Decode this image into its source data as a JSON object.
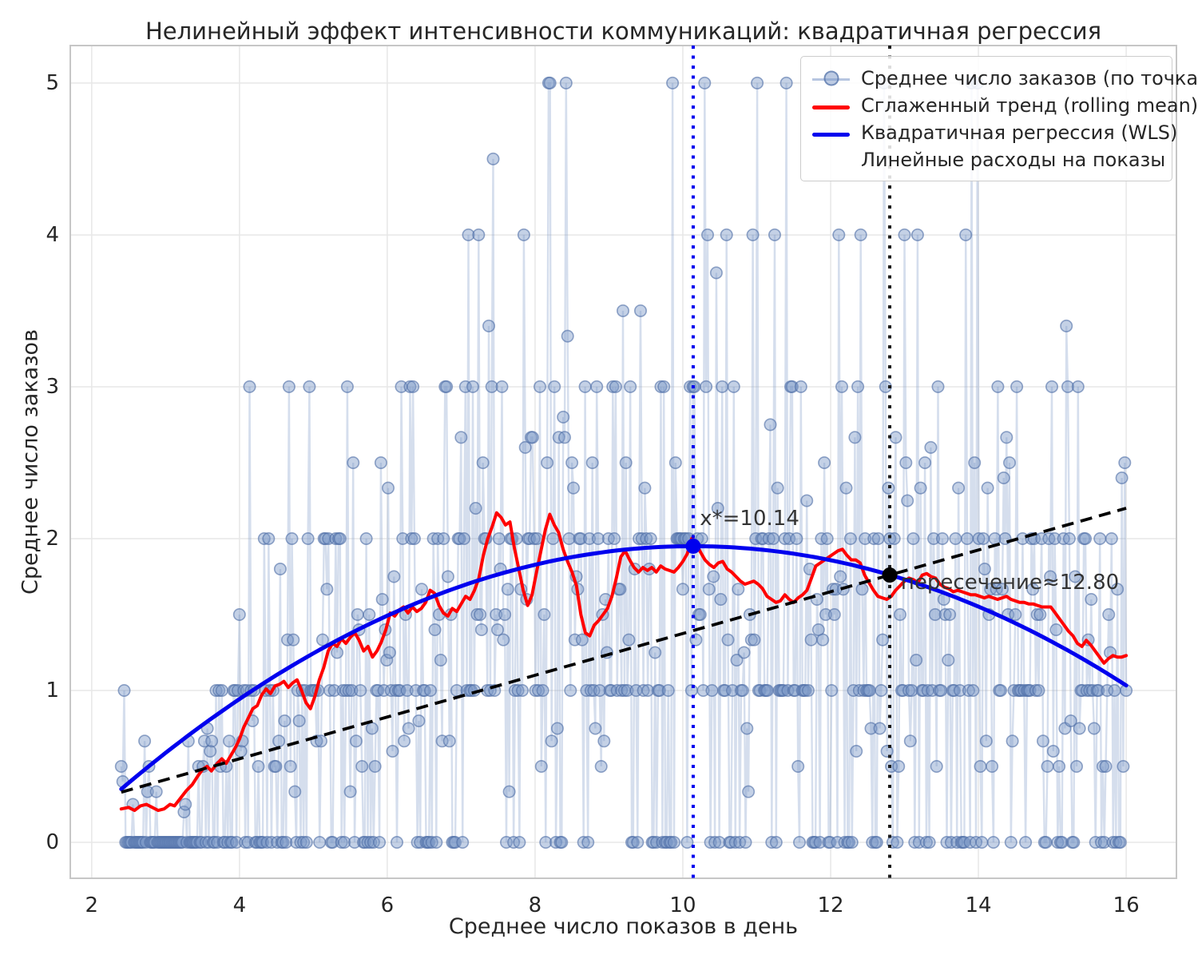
{
  "title": "Нелинейный эффект интенсивности коммуникаций: квадратичная регрессия",
  "xlabel": "Среднее число показов в день",
  "ylabel": "Среднее число заказов",
  "legend": {
    "items": [
      {
        "label": "Среднее число заказов (по точкам)",
        "type": "scatter-line",
        "color": "#aec7e8"
      },
      {
        "label": "Сглаженный тренд (rolling mean)",
        "type": "line",
        "color": "#ff0000"
      },
      {
        "label": "Квадратичная регрессия (WLS)",
        "type": "line",
        "color": "#0000ee"
      },
      {
        "label": "Линейные расходы на показы",
        "type": "dashed-line",
        "color": "#000000"
      }
    ],
    "position": "upper right"
  },
  "annotations": {
    "vertex_label": "x*=10.14",
    "vertex_anchor": [
      10.23,
      2.13
    ],
    "intersection_label": "пересечение≈12.80",
    "intersection_anchor": [
      12.95,
      1.71
    ]
  },
  "colors": {
    "scatter_fill": "rgba(124,152,200,0.45)",
    "scatter_edge": "rgba(77,109,165,0.6)",
    "scatter_connector": "rgba(124,152,200,0.32)",
    "trend": "#ff0000",
    "regression": "#0000ee",
    "costs": "#000000",
    "vline_optimum": "#0000ee",
    "vline_intersection": "#1a1a1a",
    "grid": "#e7e7e7",
    "spine": "#c6c6c6",
    "text": "#262626"
  },
  "chart_data": {
    "type": "scatter",
    "title": "Нелинейный эффект интенсивности коммуникаций: квадратичная регрессия",
    "xlabel": "Среднее число показов в день",
    "ylabel": "Среднее число заказов",
    "xlim": [
      1.71,
      16.68
    ],
    "ylim": [
      -0.237,
      5.247
    ],
    "xticks": [
      2,
      4,
      6,
      8,
      10,
      12,
      14,
      16
    ],
    "yticks": [
      0,
      1,
      2,
      3,
      4,
      5
    ],
    "grid": true,
    "legend_position": "upper right",
    "vlines": [
      {
        "x": 10.14,
        "style": "dotted",
        "color": "#0000ee",
        "name": "optimum"
      },
      {
        "x": 12.8,
        "style": "dotted",
        "color": "#1a1a1a",
        "name": "intersection"
      }
    ],
    "point_markers": [
      {
        "x": 10.14,
        "y": 1.95,
        "color": "#0000ee",
        "name": "vertex-point"
      },
      {
        "x": 12.8,
        "y": 1.76,
        "color": "#000000",
        "name": "intersection-point"
      }
    ],
    "series": [
      {
        "name": "Среднее число заказов (по точкам)",
        "type": "scatter-line",
        "generated": true,
        "generator": {
          "n": 690,
          "x_min": 2.4,
          "x_max": 16.0,
          "seed": 20240917,
          "zero_inflation": 0.13,
          "lambda_jitter": 0.3,
          "day_weights": [
            1,
            1,
            1,
            1,
            2,
            2,
            3,
            3,
            4,
            5
          ],
          "y_min": 0,
          "y_max": 5
        }
      },
      {
        "name": "Сглаженный тренд (rolling mean)",
        "type": "line",
        "points": [
          [
            2.4,
            0.22
          ],
          [
            2.5,
            0.23
          ],
          [
            2.58,
            0.21
          ],
          [
            2.66,
            0.24
          ],
          [
            2.74,
            0.25
          ],
          [
            2.82,
            0.23
          ],
          [
            2.9,
            0.21
          ],
          [
            2.98,
            0.22
          ],
          [
            3.06,
            0.25
          ],
          [
            3.12,
            0.24
          ],
          [
            3.2,
            0.29
          ],
          [
            3.28,
            0.34
          ],
          [
            3.36,
            0.38
          ],
          [
            3.44,
            0.44
          ],
          [
            3.5,
            0.48
          ],
          [
            3.56,
            0.5
          ],
          [
            3.62,
            0.47
          ],
          [
            3.7,
            0.52
          ],
          [
            3.76,
            0.55
          ],
          [
            3.82,
            0.52
          ],
          [
            3.88,
            0.57
          ],
          [
            3.94,
            0.62
          ],
          [
            4.0,
            0.68
          ],
          [
            4.06,
            0.76
          ],
          [
            4.12,
            0.82
          ],
          [
            4.18,
            0.88
          ],
          [
            4.24,
            0.9
          ],
          [
            4.3,
            0.97
          ],
          [
            4.36,
            1.01
          ],
          [
            4.42,
            0.98
          ],
          [
            4.48,
            1.03
          ],
          [
            4.54,
            1.04
          ],
          [
            4.6,
            1.06
          ],
          [
            4.66,
            1.02
          ],
          [
            4.72,
            1.05
          ],
          [
            4.78,
            1.07
          ],
          [
            4.84,
            1.0
          ],
          [
            4.9,
            0.92
          ],
          [
            4.96,
            0.88
          ],
          [
            5.02,
            0.96
          ],
          [
            5.08,
            1.07
          ],
          [
            5.14,
            1.15
          ],
          [
            5.2,
            1.26
          ],
          [
            5.26,
            1.31
          ],
          [
            5.32,
            1.29
          ],
          [
            5.38,
            1.34
          ],
          [
            5.44,
            1.31
          ],
          [
            5.5,
            1.35
          ],
          [
            5.56,
            1.38
          ],
          [
            5.62,
            1.33
          ],
          [
            5.68,
            1.26
          ],
          [
            5.74,
            1.29
          ],
          [
            5.8,
            1.22
          ],
          [
            5.86,
            1.26
          ],
          [
            5.92,
            1.32
          ],
          [
            5.98,
            1.4
          ],
          [
            6.04,
            1.51
          ],
          [
            6.1,
            1.49
          ],
          [
            6.16,
            1.53
          ],
          [
            6.22,
            1.55
          ],
          [
            6.28,
            1.51
          ],
          [
            6.34,
            1.55
          ],
          [
            6.4,
            1.52
          ],
          [
            6.46,
            1.54
          ],
          [
            6.52,
            1.58
          ],
          [
            6.58,
            1.66
          ],
          [
            6.64,
            1.64
          ],
          [
            6.7,
            1.56
          ],
          [
            6.76,
            1.51
          ],
          [
            6.82,
            1.49
          ],
          [
            6.88,
            1.54
          ],
          [
            6.94,
            1.52
          ],
          [
            7.0,
            1.57
          ],
          [
            7.06,
            1.62
          ],
          [
            7.12,
            1.6
          ],
          [
            7.18,
            1.66
          ],
          [
            7.24,
            1.74
          ],
          [
            7.3,
            1.89
          ],
          [
            7.36,
            2.0
          ],
          [
            7.42,
            2.08
          ],
          [
            7.48,
            2.17
          ],
          [
            7.54,
            2.14
          ],
          [
            7.6,
            2.09
          ],
          [
            7.66,
            2.11
          ],
          [
            7.72,
            1.94
          ],
          [
            7.78,
            1.8
          ],
          [
            7.84,
            1.66
          ],
          [
            7.9,
            1.56
          ],
          [
            7.96,
            1.63
          ],
          [
            8.02,
            1.78
          ],
          [
            8.08,
            1.92
          ],
          [
            8.14,
            2.06
          ],
          [
            8.2,
            2.16
          ],
          [
            8.26,
            2.09
          ],
          [
            8.32,
            2.04
          ],
          [
            8.38,
            1.93
          ],
          [
            8.44,
            1.85
          ],
          [
            8.5,
            1.78
          ],
          [
            8.56,
            1.69
          ],
          [
            8.62,
            1.5
          ],
          [
            8.68,
            1.38
          ],
          [
            8.74,
            1.36
          ],
          [
            8.8,
            1.43
          ],
          [
            8.86,
            1.46
          ],
          [
            8.92,
            1.5
          ],
          [
            8.98,
            1.54
          ],
          [
            9.04,
            1.62
          ],
          [
            9.1,
            1.74
          ],
          [
            9.16,
            1.88
          ],
          [
            9.22,
            1.92
          ],
          [
            9.28,
            1.86
          ],
          [
            9.34,
            1.81
          ],
          [
            9.4,
            1.78
          ],
          [
            9.46,
            1.81
          ],
          [
            9.52,
            1.79
          ],
          [
            9.58,
            1.81
          ],
          [
            9.64,
            1.78
          ],
          [
            9.7,
            1.82
          ],
          [
            9.76,
            1.8
          ],
          [
            9.82,
            1.79
          ],
          [
            9.88,
            1.78
          ],
          [
            9.94,
            1.81
          ],
          [
            10.0,
            1.85
          ],
          [
            10.06,
            1.9
          ],
          [
            10.12,
            2.0
          ],
          [
            10.18,
            1.97
          ],
          [
            10.24,
            1.91
          ],
          [
            10.3,
            1.86
          ],
          [
            10.36,
            1.83
          ],
          [
            10.42,
            1.81
          ],
          [
            10.48,
            1.84
          ],
          [
            10.54,
            1.85
          ],
          [
            10.6,
            1.8
          ],
          [
            10.66,
            1.78
          ],
          [
            10.72,
            1.75
          ],
          [
            10.78,
            1.72
          ],
          [
            10.84,
            1.7
          ],
          [
            10.9,
            1.71
          ],
          [
            10.96,
            1.72
          ],
          [
            11.02,
            1.7
          ],
          [
            11.08,
            1.67
          ],
          [
            11.14,
            1.62
          ],
          [
            11.2,
            1.6
          ],
          [
            11.26,
            1.58
          ],
          [
            11.32,
            1.59
          ],
          [
            11.38,
            1.63
          ],
          [
            11.44,
            1.6
          ],
          [
            11.5,
            1.58
          ],
          [
            11.56,
            1.61
          ],
          [
            11.62,
            1.63
          ],
          [
            11.68,
            1.66
          ],
          [
            11.74,
            1.74
          ],
          [
            11.8,
            1.82
          ],
          [
            11.86,
            1.84
          ],
          [
            11.92,
            1.86
          ],
          [
            11.98,
            1.88
          ],
          [
            12.04,
            1.9
          ],
          [
            12.1,
            1.92
          ],
          [
            12.16,
            1.93
          ],
          [
            12.22,
            1.89
          ],
          [
            12.28,
            1.86
          ],
          [
            12.34,
            1.86
          ],
          [
            12.4,
            1.84
          ],
          [
            12.46,
            1.76
          ],
          [
            12.52,
            1.71
          ],
          [
            12.58,
            1.66
          ],
          [
            12.64,
            1.62
          ],
          [
            12.7,
            1.61
          ],
          [
            12.76,
            1.6
          ],
          [
            12.82,
            1.62
          ],
          [
            12.88,
            1.66
          ],
          [
            12.94,
            1.69
          ],
          [
            13.0,
            1.72
          ],
          [
            13.06,
            1.74
          ],
          [
            13.12,
            1.73
          ],
          [
            13.18,
            1.71
          ],
          [
            13.24,
            1.76
          ],
          [
            13.3,
            1.77
          ],
          [
            13.36,
            1.75
          ],
          [
            13.42,
            1.74
          ],
          [
            13.48,
            1.7
          ],
          [
            13.54,
            1.68
          ],
          [
            13.6,
            1.67
          ],
          [
            13.66,
            1.65
          ],
          [
            13.72,
            1.66
          ],
          [
            13.78,
            1.65
          ],
          [
            13.84,
            1.64
          ],
          [
            13.9,
            1.63
          ],
          [
            13.96,
            1.63
          ],
          [
            14.02,
            1.62
          ],
          [
            14.08,
            1.61
          ],
          [
            14.14,
            1.62
          ],
          [
            14.2,
            1.61
          ],
          [
            14.26,
            1.6
          ],
          [
            14.32,
            1.61
          ],
          [
            14.38,
            1.62
          ],
          [
            14.44,
            1.6
          ],
          [
            14.5,
            1.59
          ],
          [
            14.56,
            1.58
          ],
          [
            14.62,
            1.58
          ],
          [
            14.68,
            1.57
          ],
          [
            14.74,
            1.57
          ],
          [
            14.8,
            1.56
          ],
          [
            14.86,
            1.55
          ],
          [
            14.92,
            1.55
          ],
          [
            14.98,
            1.55
          ],
          [
            15.04,
            1.51
          ],
          [
            15.1,
            1.47
          ],
          [
            15.16,
            1.43
          ],
          [
            15.22,
            1.39
          ],
          [
            15.28,
            1.36
          ],
          [
            15.34,
            1.31
          ],
          [
            15.4,
            1.29
          ],
          [
            15.46,
            1.33
          ],
          [
            15.52,
            1.3
          ],
          [
            15.58,
            1.26
          ],
          [
            15.64,
            1.22
          ],
          [
            15.7,
            1.18
          ],
          [
            15.76,
            1.21
          ],
          [
            15.82,
            1.23
          ],
          [
            15.88,
            1.22
          ],
          [
            15.94,
            1.22
          ],
          [
            16.0,
            1.23
          ]
        ]
      },
      {
        "name": "Квадратичная регрессия (WLS)",
        "type": "quadratic",
        "vertex": [
          10.14,
          1.95
        ],
        "a": -0.0267,
        "x_range": [
          2.4,
          16.0
        ]
      },
      {
        "name": "Линейные расходы на показы",
        "type": "dashed-line",
        "points": [
          [
            2.4,
            0.33
          ],
          [
            16.0,
            2.2
          ]
        ]
      }
    ]
  }
}
